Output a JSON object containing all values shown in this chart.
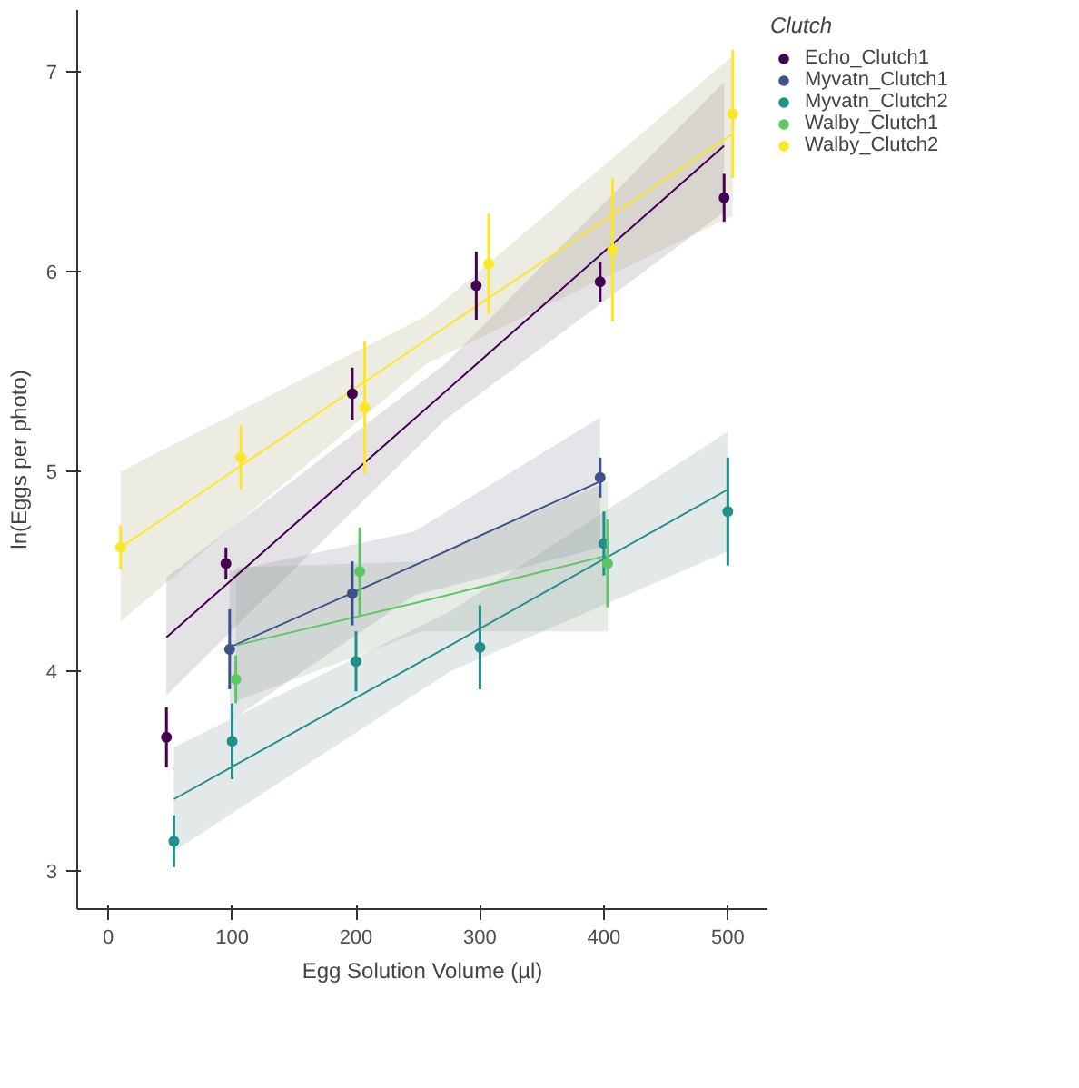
{
  "chart_data": {
    "type": "scatter",
    "xlabel": "Egg Solution Volume (µl)",
    "ylabel": "ln(Eggs per photo)",
    "legend_title": "Clutch",
    "xlim": [
      -25,
      532
    ],
    "ylim": [
      2.81,
      7.31
    ],
    "xticks": [
      0,
      100,
      200,
      300,
      400,
      500
    ],
    "yticks": [
      3,
      4,
      5,
      6,
      7
    ],
    "grid": false,
    "legend": "right",
    "line_style": "solid",
    "series": [
      {
        "type": "line",
        "marker": "none",
        "color": "#440154",
        "x": [
          47,
          272,
          497
        ],
        "values": [
          4.17,
          5.4,
          6.63
        ],
        "lower": [
          3.88,
          5.26,
          6.3
        ],
        "upper": [
          4.47,
          5.54,
          6.95
        ]
      },
      {
        "type": "line",
        "marker": "none",
        "color": "#3b528b",
        "x": [
          98,
          247,
          397
        ],
        "values": [
          4.12,
          4.53,
          4.95
        ],
        "lower": [
          3.75,
          4.38,
          4.62
        ],
        "upper": [
          4.5,
          4.7,
          5.27
        ]
      },
      {
        "type": "line",
        "marker": "none",
        "color": "#21908c",
        "x": [
          53,
          276,
          500
        ],
        "values": [
          3.36,
          4.13,
          4.91
        ],
        "lower": [
          3.1,
          4.0,
          4.6
        ],
        "upper": [
          3.62,
          4.3,
          5.2
        ]
      },
      {
        "type": "line",
        "marker": "none",
        "color": "#5dc863",
        "x": [
          103,
          253,
          403
        ],
        "values": [
          4.13,
          4.35,
          4.58
        ],
        "lower": [
          3.85,
          4.2,
          4.2
        ],
        "upper": [
          4.52,
          4.55,
          4.95
        ]
      },
      {
        "type": "line",
        "marker": "none",
        "color": "#fde725",
        "x": [
          10,
          257,
          504
        ],
        "values": [
          4.62,
          5.66,
          6.69
        ],
        "lower": [
          4.25,
          5.54,
          6.28
        ],
        "upper": [
          5.0,
          5.78,
          7.08
        ]
      },
      {
        "marker": "circle",
        "name": "Echo_Clutch1",
        "color": "#440154",
        "x": [
          47,
          95,
          197,
          297,
          397,
          497
        ],
        "values": [
          3.67,
          4.54,
          5.39,
          5.93,
          5.95,
          6.37
        ],
        "errors": [
          0.15,
          0.08,
          0.13,
          0.17,
          0.1,
          0.12
        ]
      },
      {
        "marker": "circle",
        "name": "Myvatn_Clutch1",
        "color": "#3b528b",
        "x": [
          98,
          197,
          397
        ],
        "values": [
          4.11,
          4.39,
          4.97
        ],
        "errors": [
          0.2,
          0.16,
          0.1
        ]
      },
      {
        "marker": "circle",
        "name": "Myvatn_Clutch2",
        "color": "#21908c",
        "x": [
          53,
          100,
          200,
          300,
          400,
          500
        ],
        "values": [
          3.15,
          3.65,
          4.05,
          4.12,
          4.64,
          4.8
        ],
        "errors": [
          0.13,
          0.19,
          0.15,
          0.21,
          0.16,
          0.27
        ]
      },
      {
        "marker": "circle",
        "name": "Walby_Clutch1",
        "color": "#5dc863",
        "x": [
          103,
          203,
          403
        ],
        "values": [
          3.96,
          4.5,
          4.54
        ],
        "errors": [
          0.12,
          0.22,
          0.22
        ]
      },
      {
        "marker": "circle",
        "name": "Walby_Clutch2",
        "color": "#fde725",
        "x": [
          10,
          107,
          207,
          307,
          407,
          504
        ],
        "values": [
          4.62,
          5.07,
          5.32,
          6.04,
          6.11,
          6.79
        ],
        "errors": [
          0.11,
          0.16,
          0.33,
          0.25,
          0.36,
          0.32
        ]
      }
    ]
  }
}
